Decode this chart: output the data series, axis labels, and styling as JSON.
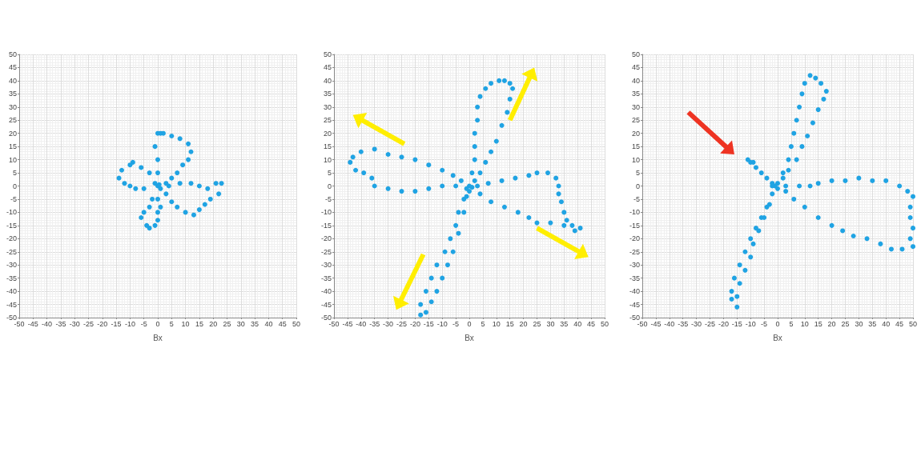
{
  "chart_data": [
    {
      "type": "scatter",
      "xlabel": "Bx",
      "xlim": [
        -50,
        50
      ],
      "ylim": [
        -50,
        50
      ],
      "xticks": [
        -50,
        -45,
        -40,
        -35,
        -30,
        -25,
        -20,
        -15,
        -10,
        -5,
        0,
        5,
        10,
        15,
        20,
        25,
        30,
        35,
        40,
        45,
        50
      ],
      "yticks": [
        -50,
        -45,
        -40,
        -35,
        -30,
        -25,
        -20,
        -15,
        -10,
        -5,
        0,
        5,
        10,
        15,
        20,
        25,
        30,
        35,
        40,
        45,
        50
      ],
      "grid": true,
      "marker": "circle",
      "series": [
        {
          "color": "#1fa3e3",
          "x": [
            0,
            1,
            -1,
            0.5,
            0,
            0,
            -1,
            0,
            1,
            2,
            5,
            8,
            11,
            12,
            11,
            9,
            7,
            5,
            3,
            -3,
            -6,
            -9,
            -10,
            -13,
            -14,
            -12,
            -10,
            -8,
            -5,
            4,
            8,
            12,
            15,
            18,
            21,
            23,
            22,
            19,
            17,
            15,
            13,
            10,
            7,
            5,
            3,
            -2,
            -3,
            -5,
            -6,
            -4,
            -3,
            -1,
            0,
            0,
            1,
            0
          ],
          "values": [
            0,
            -1,
            1,
            0.5,
            5,
            10,
            15,
            20,
            20,
            20,
            19,
            18,
            16,
            13,
            10,
            8,
            5,
            3,
            1,
            5,
            7,
            9,
            8,
            6,
            3,
            1,
            0,
            -1,
            -1,
            0,
            1,
            1,
            0,
            -1,
            1,
            1,
            -3,
            -5,
            -7,
            -9,
            -11,
            -10,
            -8,
            -6,
            -3,
            -5,
            -8,
            -10,
            -12,
            -15,
            -16,
            -15,
            -13,
            -10,
            -8,
            -5
          ]
        }
      ]
    },
    {
      "type": "scatter",
      "xlabel": "Bx",
      "xlim": [
        -50,
        50
      ],
      "ylim": [
        -50,
        50
      ],
      "xticks": [
        -50,
        -45,
        -40,
        -35,
        -30,
        -25,
        -20,
        -15,
        -10,
        -5,
        0,
        5,
        10,
        15,
        20,
        25,
        30,
        35,
        40,
        45,
        50
      ],
      "yticks": [
        -50,
        -45,
        -40,
        -35,
        -30,
        -25,
        -20,
        -15,
        -10,
        -5,
        0,
        5,
        10,
        15,
        20,
        25,
        30,
        35,
        40,
        45,
        50
      ],
      "grid": true,
      "marker": "circle",
      "series": [
        {
          "color": "#1fa3e3",
          "x": [
            0,
            -1,
            1,
            0,
            1,
            2,
            2,
            2,
            3,
            3,
            4,
            6,
            8,
            11,
            13,
            15,
            16,
            15,
            14,
            12,
            10,
            8,
            6,
            4,
            2,
            -3,
            -6,
            -10,
            -15,
            -20,
            -25,
            -30,
            -35,
            -40,
            -43,
            -44,
            -42,
            -39,
            -36,
            -35,
            -30,
            -25,
            -20,
            -15,
            -10,
            -5,
            3,
            7,
            12,
            17,
            22,
            25,
            29,
            32,
            33,
            33,
            34,
            35,
            36,
            38,
            41,
            39,
            35,
            30,
            25,
            22,
            18,
            13,
            8,
            4,
            -2,
            -4,
            -5,
            -7,
            -9,
            -12,
            -14,
            -16,
            -18,
            -18,
            -16,
            -14,
            -12,
            -10,
            -8,
            -6,
            -4,
            -2,
            -1
          ],
          "values": [
            0,
            -1,
            -0.5,
            -2,
            5,
            10,
            15,
            20,
            25,
            30,
            34,
            37,
            39,
            40,
            40,
            39,
            37,
            33,
            28,
            23,
            17,
            13,
            9,
            5,
            2,
            2,
            4,
            6,
            8,
            10,
            11,
            12,
            14,
            13,
            11,
            9,
            6,
            5,
            3,
            0,
            -1,
            -2,
            -2,
            -1,
            0,
            0,
            0,
            1,
            2,
            3,
            4,
            5,
            5,
            3,
            0,
            -3,
            -6,
            -10,
            -13,
            -15,
            -16,
            -17,
            -15,
            -14,
            -14,
            -12,
            -10,
            -8,
            -6,
            -3,
            -5,
            -10,
            -15,
            -20,
            -25,
            -30,
            -35,
            -40,
            -45,
            -49,
            -48,
            -44,
            -40,
            -35,
            -30,
            -25,
            -18,
            -10,
            -4
          ]
        }
      ]
    },
    {
      "type": "scatter",
      "xlabel": "Bx",
      "xlim": [
        -50,
        50
      ],
      "ylim": [
        -50,
        50
      ],
      "xticks": [
        -50,
        -45,
        -40,
        -35,
        -30,
        -25,
        -20,
        -15,
        -10,
        -5,
        0,
        5,
        10,
        15,
        20,
        25,
        30,
        35,
        40,
        45,
        50
      ],
      "yticks": [
        -50,
        -45,
        -40,
        -35,
        -30,
        -25,
        -20,
        -15,
        -10,
        -5,
        0,
        5,
        10,
        15,
        20,
        25,
        30,
        35,
        40,
        45,
        50
      ],
      "grid": true,
      "marker": "circle",
      "series": [
        {
          "color": "#1fa3e3",
          "x": [
            -1,
            -2,
            0,
            0,
            2,
            4,
            5,
            6,
            7,
            8,
            9,
            10,
            12,
            14,
            16,
            18,
            17,
            15,
            13,
            11,
            9,
            7,
            4,
            2,
            -2,
            -4,
            -6,
            -8,
            -10,
            -11,
            -9,
            3,
            8,
            12,
            15,
            20,
            25,
            30,
            35,
            40,
            45,
            48,
            50,
            49,
            49,
            50,
            49,
            50,
            46,
            42,
            38,
            33,
            28,
            24,
            20,
            15,
            10,
            6,
            3,
            -2,
            -4,
            -6,
            -8,
            -10,
            -12,
            -14,
            -16,
            -17,
            -17,
            -15,
            -15,
            -14,
            -12,
            -10,
            -9,
            -7,
            -5,
            -3
          ],
          "values": [
            0,
            0,
            -1,
            1,
            5,
            10,
            15,
            20,
            25,
            30,
            35,
            39,
            42,
            41,
            39,
            36,
            33,
            29,
            24,
            19,
            15,
            10,
            6,
            3,
            1,
            3,
            5,
            7,
            9,
            10,
            9,
            0,
            0,
            0,
            1,
            2,
            2,
            3,
            2,
            2,
            0,
            -2,
            -4,
            -8,
            -12,
            -16,
            -20,
            -23,
            -24,
            -24,
            -22,
            -20,
            -19,
            -17,
            -15,
            -12,
            -8,
            -5,
            -2,
            -3,
            -8,
            -12,
            -16,
            -20,
            -25,
            -30,
            -35,
            -40,
            -43,
            -46,
            -42,
            -37,
            -32,
            -27,
            -22,
            -17,
            -12,
            -7
          ]
        }
      ]
    }
  ]
}
